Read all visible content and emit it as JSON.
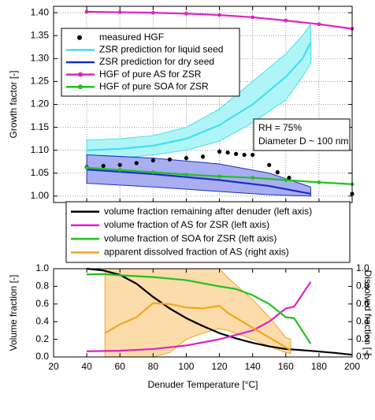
{
  "chart_data": [
    {
      "type": "line",
      "ylabel": "Growth factor  [-]",
      "xlim": [
        20,
        200
      ],
      "xticks": [
        20,
        40,
        60,
        80,
        100,
        120,
        140,
        160,
        180,
        200
      ],
      "ylim": [
        0.986,
        1.414
      ],
      "yticks": [
        {
          "value": 1.0,
          "label": "1.00"
        },
        {
          "value": 1.05,
          "label": "1.05"
        },
        {
          "value": 1.1,
          "label": "1.10"
        },
        {
          "value": 1.15,
          "label": "1.15"
        },
        {
          "value": 1.2,
          "label": "1.20"
        },
        {
          "value": 1.25,
          "label": "1.25"
        },
        {
          "value": 1.3,
          "label": "1.30"
        },
        {
          "value": 1.35,
          "label": "1.35"
        },
        {
          "value": 1.4,
          "label": "1.40"
        }
      ],
      "grid": true,
      "annotations": [
        "RH = 75%",
        "Diameter D ~ 100 nm"
      ],
      "series": [
        {
          "name": "measured HGF",
          "color": "#000000",
          "style": "errorbar",
          "x": [
            40,
            50,
            60,
            70,
            80,
            90,
            100,
            110,
            120,
            125,
            130,
            135,
            140,
            150,
            155,
            162,
            200
          ],
          "values": [
            1.063,
            1.066,
            1.068,
            1.072,
            1.078,
            1.08,
            1.083,
            1.086,
            1.097,
            1.095,
            1.092,
            1.09,
            1.09,
            1.068,
            1.052,
            1.04,
            1.005
          ],
          "errors": [
            0.005,
            0.004,
            0.004,
            0.004,
            0.004,
            0.004,
            0.005,
            0.005,
            0.005,
            0.004,
            0.004,
            0.004,
            0.004,
            0.004,
            0.004,
            0.004,
            0.004
          ]
        },
        {
          "name": "ZSR prediction for liquid seed",
          "color": "#40e0f0",
          "band_color": "#aff5f8",
          "style": "line",
          "x": [
            40,
            60,
            80,
            100,
            120,
            140,
            150,
            160,
            170,
            175
          ],
          "values": [
            1.1,
            1.103,
            1.11,
            1.125,
            1.155,
            1.2,
            1.23,
            1.26,
            1.3,
            1.335
          ],
          "band_upper": [
            1.122,
            1.125,
            1.132,
            1.15,
            1.19,
            1.25,
            1.28,
            1.31,
            1.35,
            1.375
          ],
          "band_lower": [
            1.08,
            1.083,
            1.09,
            1.1,
            1.12,
            1.16,
            1.185,
            1.21,
            1.26,
            1.29
          ]
        },
        {
          "name": "ZSR prediction for dry seed",
          "color": "#1a2ec8",
          "band_color": "#a8aef0",
          "style": "line",
          "x": [
            40,
            80,
            120,
            150,
            175
          ],
          "values": [
            1.058,
            1.048,
            1.035,
            1.022,
            1.005
          ],
          "band_upper": [
            1.09,
            1.083,
            1.07,
            1.05,
            1.02
          ],
          "band_lower": [
            1.028,
            1.02,
            1.01,
            1.003,
            1.0
          ]
        },
        {
          "name": "HGF of pure AS for ZSR",
          "color": "#e020c0",
          "style": "line-dots",
          "x": [
            40,
            60,
            80,
            100,
            120,
            140,
            160,
            180,
            200
          ],
          "values": [
            1.402,
            1.401,
            1.4,
            1.398,
            1.395,
            1.39,
            1.383,
            1.375,
            1.365
          ]
        },
        {
          "name": "HGF of pure SOA for ZSR",
          "color": "#22c022",
          "style": "line-dots",
          "x": [
            40,
            60,
            80,
            100,
            120,
            140,
            160,
            180,
            200
          ],
          "values": [
            1.062,
            1.057,
            1.052,
            1.047,
            1.043,
            1.04,
            1.035,
            1.03,
            1.026
          ]
        }
      ]
    },
    {
      "type": "line",
      "xlabel": "Denuder Temperature [°C]",
      "ylabel": "Volume fraction  [-]",
      "y2label": "Dissolved fraction  [-]",
      "xlim": [
        20,
        200
      ],
      "xticks": [
        20,
        40,
        60,
        80,
        100,
        120,
        140,
        160,
        180,
        200
      ],
      "ylim": [
        0,
        1
      ],
      "yticks": [
        {
          "value": 0,
          "label": "0.0"
        },
        0.2,
        0.4,
        0.6,
        0.8,
        {
          "value": 1,
          "label": "1.0"
        }
      ],
      "y2lim": [
        0,
        1
      ],
      "y2ticks": [
        {
          "value": 0,
          "label": "0.0"
        },
        0.2,
        0.4,
        0.6,
        0.8,
        {
          "value": 1,
          "label": "1.0"
        }
      ],
      "series": [
        {
          "name": "volume fraction remaining after denuder (left axis)",
          "color": "#000000",
          "style": "line",
          "x": [
            40,
            50,
            60,
            70,
            80,
            90,
            100,
            110,
            120,
            130,
            140,
            150,
            160,
            175,
            190,
            200
          ],
          "values": [
            1.0,
            0.98,
            0.93,
            0.83,
            0.68,
            0.55,
            0.44,
            0.35,
            0.27,
            0.21,
            0.16,
            0.12,
            0.09,
            0.07,
            0.045,
            0.025
          ]
        },
        {
          "name": "volume fraction of AS for ZSR (left axis)",
          "color": "#e020c0",
          "style": "line",
          "x": [
            40,
            60,
            80,
            100,
            120,
            140,
            150,
            160,
            165,
            175
          ],
          "values": [
            0.065,
            0.07,
            0.09,
            0.13,
            0.2,
            0.3,
            0.4,
            0.55,
            0.57,
            0.85
          ]
        },
        {
          "name": "volume fraction of SOA for ZSR (left axis)",
          "color": "#22c022",
          "style": "line",
          "x": [
            40,
            50,
            60,
            80,
            100,
            120,
            130,
            140,
            150,
            160,
            165,
            175
          ],
          "values": [
            0.935,
            0.94,
            0.925,
            0.905,
            0.87,
            0.8,
            0.77,
            0.7,
            0.6,
            0.45,
            0.44,
            0.15
          ]
        },
        {
          "name": "apparent dissolved fraction of AS (right axis)",
          "color": "#f4a420",
          "band_color": "#fbdcaa",
          "style": "line",
          "axis": "y2",
          "x": [
            51,
            60,
            70,
            80,
            90,
            100,
            110,
            120,
            125,
            140,
            150,
            160,
            163
          ],
          "values": [
            0.27,
            0.37,
            0.45,
            0.61,
            0.6,
            0.56,
            0.55,
            0.58,
            0.5,
            0.33,
            0.22,
            0.11,
            0.08
          ],
          "band_upper": [
            1,
            1,
            1,
            1,
            1,
            1,
            1,
            1,
            0.9,
            0.65,
            0.45,
            0.22,
            0.2
          ],
          "band_lower": [
            0,
            0,
            0,
            0,
            0.05,
            0.2,
            0.27,
            0.32,
            0.3,
            0.2,
            0.12,
            0.05,
            0.04
          ]
        }
      ]
    }
  ]
}
